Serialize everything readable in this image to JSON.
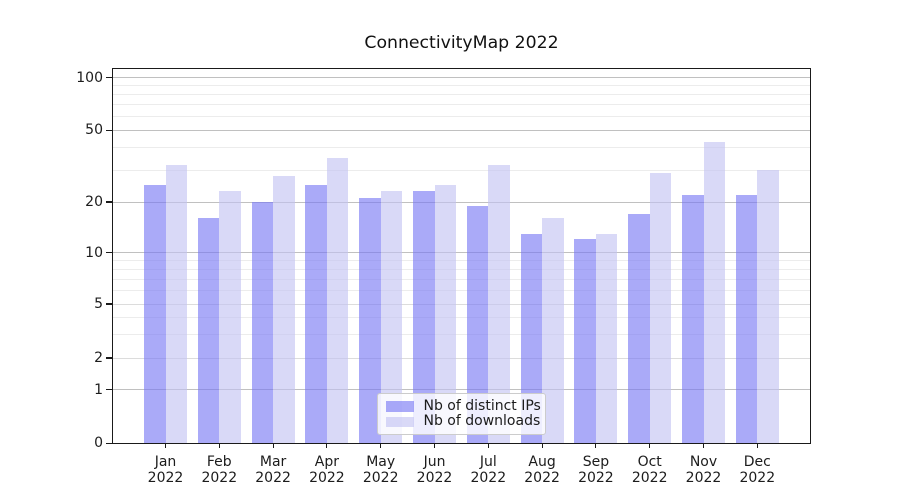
{
  "chart_data": {
    "type": "bar",
    "title": "ConnectivityMap 2022",
    "categories": [
      "Jan",
      "Feb",
      "Mar",
      "Apr",
      "May",
      "Jun",
      "Jul",
      "Aug",
      "Sep",
      "Oct",
      "Nov",
      "Dec"
    ],
    "x_year_suffix": "2022",
    "series": [
      {
        "name": "Nb of distinct IPs",
        "color": "rgba(118,118,243,0.62)",
        "values": [
          25,
          16,
          20,
          25,
          21,
          23,
          19,
          13,
          12,
          17,
          22,
          22
        ]
      },
      {
        "name": "Nb of downloads",
        "color": "rgba(194,194,242,0.62)",
        "values": [
          32,
          23,
          28,
          35,
          23,
          25,
          32,
          16,
          13,
          29,
          43,
          30
        ]
      }
    ],
    "xlabel": "",
    "ylabel": "",
    "yticks": [
      0,
      1,
      2,
      5,
      10,
      20,
      50,
      100
    ],
    "y_scale": "symlog",
    "ylim": [
      0,
      113
    ],
    "grid": {
      "strong": [
        1,
        10,
        20,
        50,
        100
      ],
      "medium": [
        2,
        5
      ],
      "minor": [
        3,
        4,
        6,
        7,
        8,
        9,
        30,
        40,
        60,
        70,
        80,
        90
      ]
    },
    "legend_position": "lower center"
  },
  "colors": {
    "grid_strong": "#c0c0c0",
    "grid_medium": "#dcdcdc",
    "grid_minor": "#ececec",
    "spine": "#1a1a1a",
    "text": "#1c1c1c"
  }
}
